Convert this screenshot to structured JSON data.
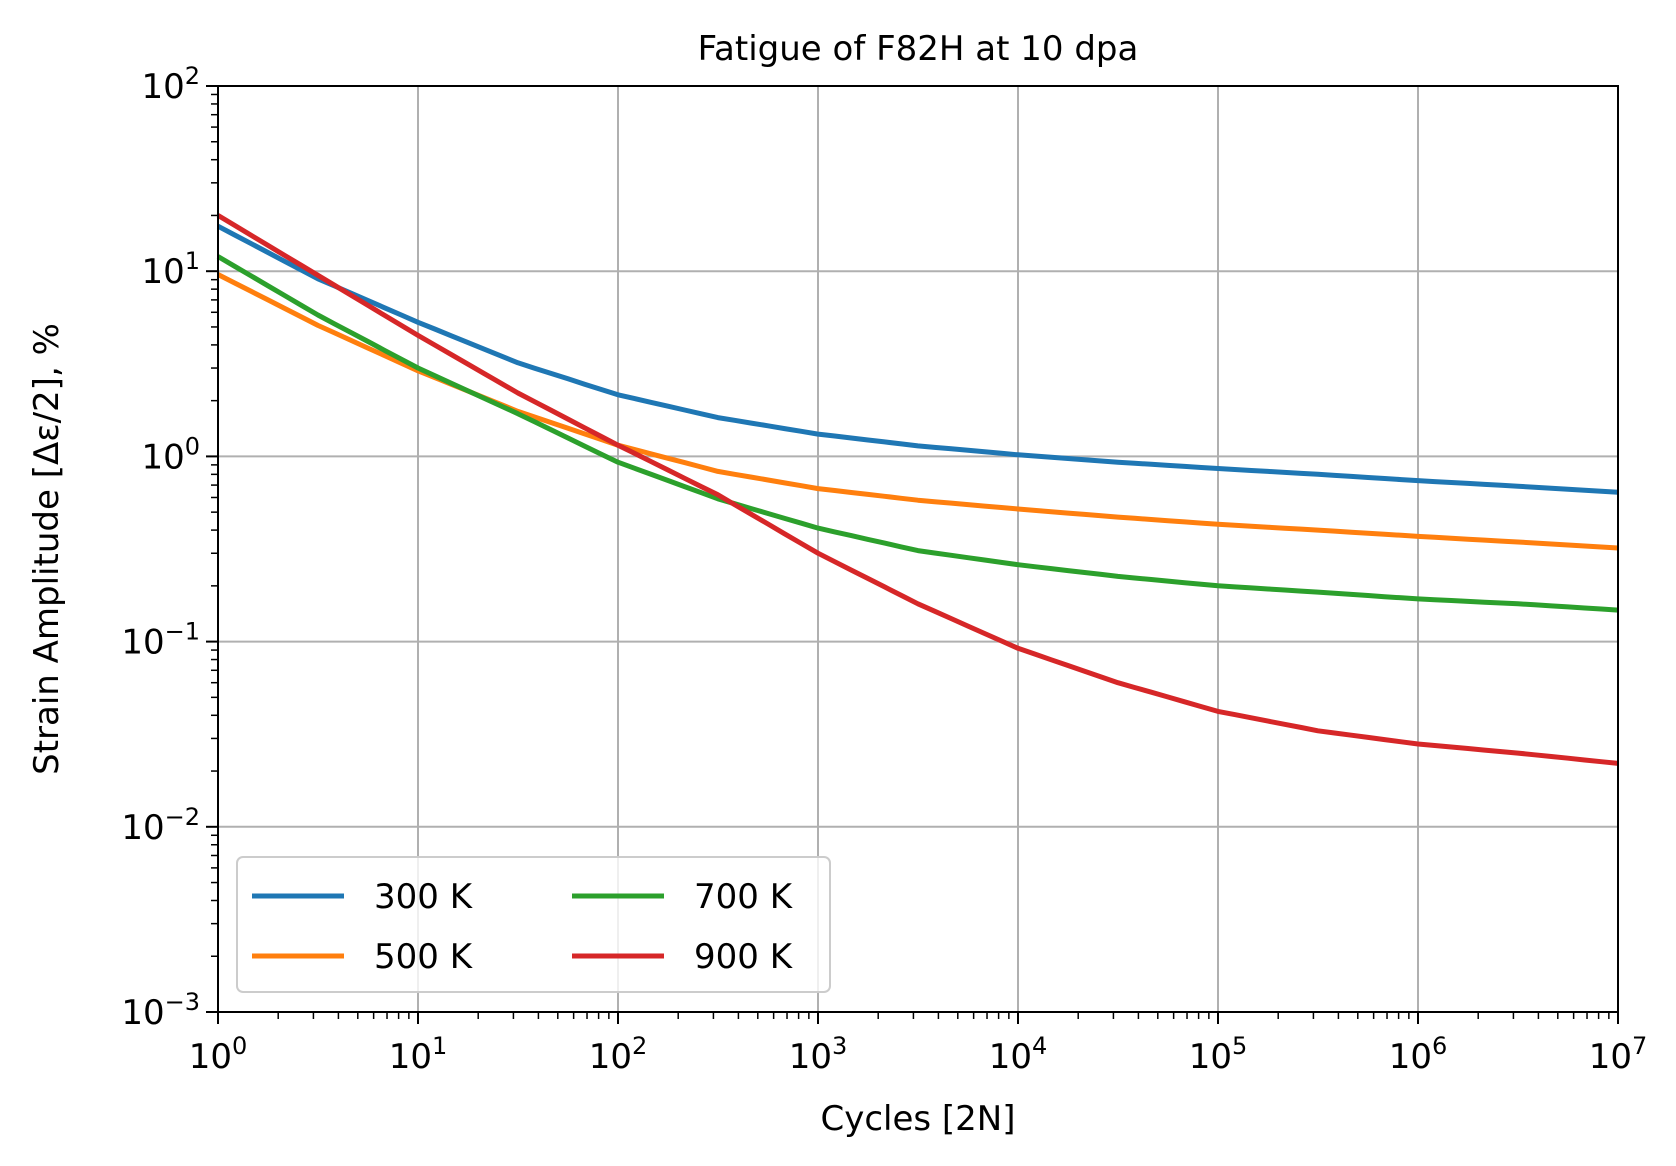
{
  "chart_data": {
    "type": "line",
    "title": "Fatigue of F82H at 10 dpa",
    "xlabel": "Cycles [2N]",
    "ylabel": "Strain Amplitude [Δε/2], %",
    "xscale": "log",
    "yscale": "log",
    "xlim": [
      1,
      10000000
    ],
    "ylim": [
      0.001,
      100
    ],
    "grid": true,
    "legend_position": "lower-left",
    "legend_columns": 2,
    "x_ticks": [
      {
        "base": "10",
        "exp": "0"
      },
      {
        "base": "10",
        "exp": "1"
      },
      {
        "base": "10",
        "exp": "2"
      },
      {
        "base": "10",
        "exp": "3"
      },
      {
        "base": "10",
        "exp": "4"
      },
      {
        "base": "10",
        "exp": "5"
      },
      {
        "base": "10",
        "exp": "6"
      },
      {
        "base": "10",
        "exp": "7"
      }
    ],
    "y_ticks": [
      {
        "base": "10",
        "exp": "−3"
      },
      {
        "base": "10",
        "exp": "−2"
      },
      {
        "base": "10",
        "exp": "−1"
      },
      {
        "base": "10",
        "exp": "0"
      },
      {
        "base": "10",
        "exp": "1"
      },
      {
        "base": "10",
        "exp": "2"
      }
    ],
    "x": [
      1,
      3.16,
      10,
      31.6,
      100,
      316,
      1000,
      3160,
      10000,
      31600,
      100000,
      316000,
      1000000,
      3160000,
      10000000
    ],
    "series": [
      {
        "name": "300 K",
        "color": "#1f77b4",
        "values": [
          17.5,
          9.1,
          5.3,
          3.2,
          2.15,
          1.62,
          1.32,
          1.14,
          1.02,
          0.93,
          0.86,
          0.8,
          0.74,
          0.69,
          0.64
        ]
      },
      {
        "name": "500 K",
        "color": "#ff7f0e",
        "values": [
          9.6,
          5.1,
          2.9,
          1.75,
          1.15,
          0.83,
          0.67,
          0.58,
          0.52,
          0.47,
          0.43,
          0.4,
          0.37,
          0.345,
          0.32
        ]
      },
      {
        "name": "700 K",
        "color": "#2ca02c",
        "values": [
          12.0,
          5.8,
          3.0,
          1.7,
          0.93,
          0.59,
          0.41,
          0.31,
          0.26,
          0.225,
          0.2,
          0.185,
          0.17,
          0.16,
          0.148
        ]
      },
      {
        "name": "900 K",
        "color": "#d62728",
        "values": [
          20.0,
          9.5,
          4.5,
          2.2,
          1.15,
          0.62,
          0.3,
          0.16,
          0.092,
          0.06,
          0.042,
          0.033,
          0.028,
          0.025,
          0.022
        ]
      }
    ]
  }
}
